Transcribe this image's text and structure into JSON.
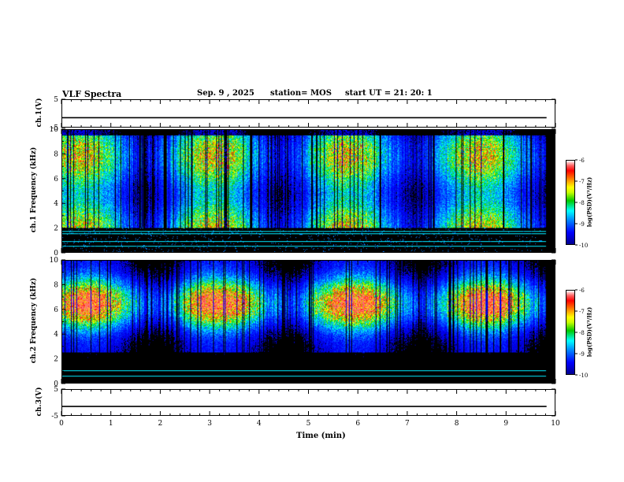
{
  "header": {
    "title": "VLF Spectra",
    "date": "Sep. 9 , 2025",
    "station": "station= MOS",
    "start": "start UT =  21: 20: 1"
  },
  "chart_data": [
    {
      "type": "line",
      "name": "ch1-waveform",
      "ylabel": "ch.1(V)",
      "ylim": [
        -5,
        5
      ],
      "yticks": [
        5,
        -5
      ],
      "x": [
        0,
        9.82
      ],
      "values": [
        -1.5,
        -1.5
      ],
      "xlim": [
        0,
        10
      ]
    },
    {
      "type": "heatmap",
      "name": "ch1-spectrogram",
      "ylabel": "ch.1 Frequency (kHz)",
      "xlim": [
        0,
        10
      ],
      "ylim": [
        0,
        10
      ],
      "yticks": [
        0,
        2,
        4,
        6,
        8,
        10
      ],
      "data_end_min": 9.82,
      "emission_band_khz": [
        2,
        10
      ],
      "persistent_lines_khz": [
        0.5,
        0.9,
        1.5,
        1.7
      ],
      "colorbar": {
        "label": "log(PSD)(V²/Hz)",
        "range": [
          -10,
          -6
        ],
        "ticks": [
          -6,
          -7,
          -8,
          -9,
          -10
        ]
      }
    },
    {
      "type": "heatmap",
      "name": "ch2-spectrogram",
      "ylabel": "ch.2 Frequency (kHz)",
      "xlim": [
        0,
        10
      ],
      "ylim": [
        0,
        10
      ],
      "yticks": [
        0,
        2,
        4,
        6,
        8,
        10
      ],
      "data_end_min": 9.82,
      "emission_band_khz": [
        3,
        9
      ],
      "peak_khz": 6.5,
      "persistent_lines_khz": [
        0.6,
        1.0
      ],
      "colorbar": {
        "label": "log(PSD)(V²/Hz)",
        "range": [
          -10,
          -6
        ],
        "ticks": [
          -6,
          -7,
          -8,
          -9,
          -10
        ]
      }
    },
    {
      "type": "line",
      "name": "ch3-waveform",
      "ylabel": "ch.3(V)",
      "ylim": [
        -5,
        5
      ],
      "yticks": [
        5,
        -5
      ],
      "x": [
        0,
        9.82
      ],
      "values": [
        -1.5,
        -1.5
      ],
      "xlim": [
        0,
        10
      ]
    }
  ],
  "xaxis": {
    "label": "Time (min)",
    "ticks": [
      0,
      1,
      2,
      3,
      4,
      5,
      6,
      7,
      8,
      9,
      10
    ]
  },
  "colors": {
    "background": "#000000",
    "trace": "#000000"
  }
}
